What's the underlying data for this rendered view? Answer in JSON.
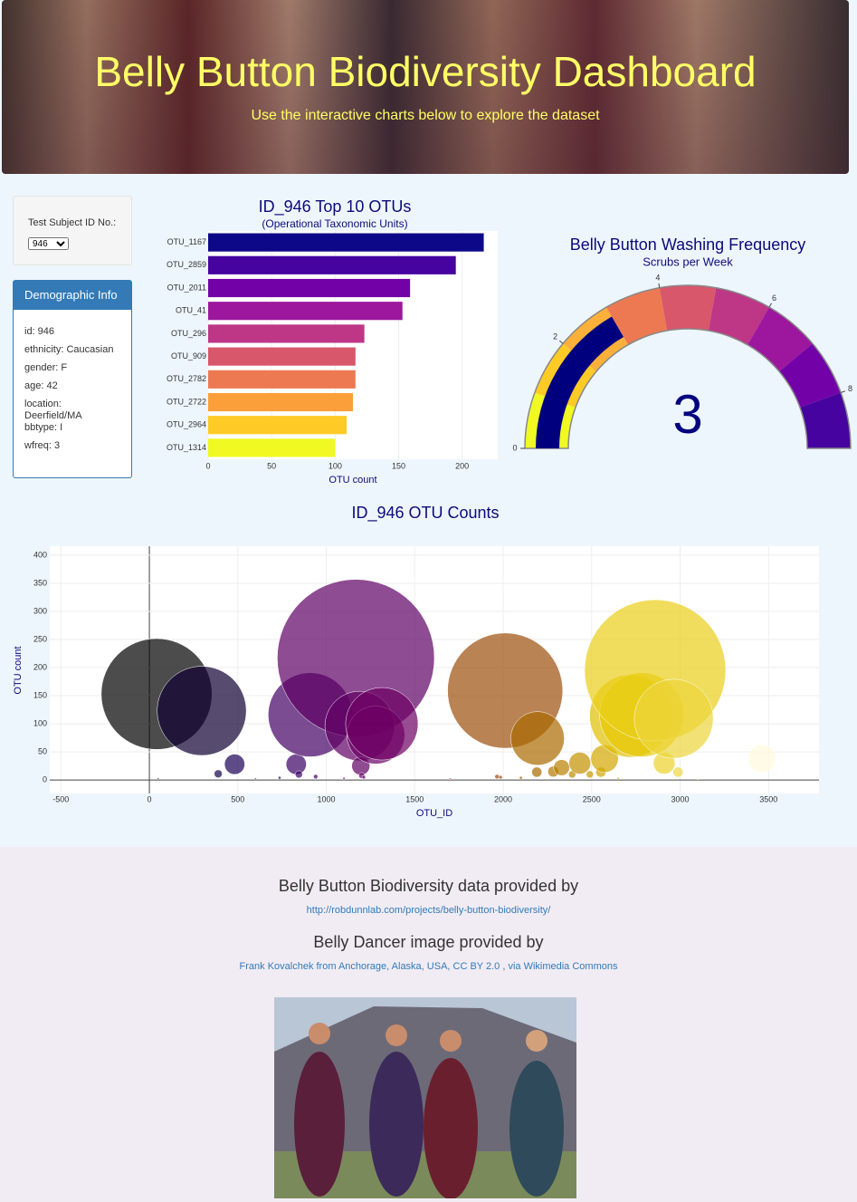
{
  "header": {
    "title": "Belly Button Biodiversity Dashboard",
    "subtitle": "Use the interactive charts below to explore the dataset"
  },
  "sidebar": {
    "select_label": "Test Subject ID No.:",
    "selected": "946",
    "panel_title": "Demographic Info",
    "info": [
      "id: 946",
      "ethnicity: Caucasian",
      "gender: F",
      "age: 42",
      "location: Deerfield/MA",
      "bbtype: I",
      "wfreq: 3"
    ]
  },
  "chart_data": [
    {
      "type": "hbar",
      "title": "ID_946 Top 10 OTUs",
      "subtitle": "(Operational Taxonomic Units)",
      "x_label": "OTU count",
      "categories": [
        "OTU_1167",
        "OTU_2859",
        "OTU_2011",
        "OTU_41",
        "OTU_296",
        "OTU_909",
        "OTU_2782",
        "OTU_2722",
        "OTU_2964",
        "OTU_1314"
      ],
      "values": [
        217,
        195,
        159,
        153,
        123,
        116,
        116,
        114,
        109,
        100
      ],
      "colors": [
        "#0d0887",
        "#46039f",
        "#7201a8",
        "#9c179e",
        "#bd3786",
        "#d8576b",
        "#ed7953",
        "#fb9f3a",
        "#fdca26",
        "#f0f921"
      ],
      "xlim": [
        0,
        228
      ],
      "xticks": [
        0,
        50,
        100,
        150,
        200
      ],
      "grid": true
    },
    {
      "type": "gauge",
      "title": "Belly Button Washing Frequency",
      "subtitle": "Scrubs per Week",
      "value": 3,
      "range": [
        0,
        9
      ],
      "ticks": [
        0,
        2,
        4,
        6,
        8
      ],
      "bar_color": "#00007f",
      "steps": [
        {
          "range": [
            0,
            1
          ],
          "color": "#f0f921"
        },
        {
          "range": [
            1,
            2
          ],
          "color": "#fdca26"
        },
        {
          "range": [
            2,
            3
          ],
          "color": "#fbb03a"
        },
        {
          "range": [
            3,
            4
          ],
          "color": "#ed7953"
        },
        {
          "range": [
            4,
            5
          ],
          "color": "#d8576b"
        },
        {
          "range": [
            5,
            6
          ],
          "color": "#bd3786"
        },
        {
          "range": [
            6,
            7
          ],
          "color": "#9c179e"
        },
        {
          "range": [
            7,
            8
          ],
          "color": "#7201a8"
        },
        {
          "range": [
            8,
            9
          ],
          "color": "#46039f"
        }
      ]
    },
    {
      "type": "bubble",
      "title": "ID_946 OTU Counts",
      "x_label": "OTU_ID",
      "y_label": "OTU count",
      "x": [
        41,
        296,
        389,
        482,
        736,
        830,
        845,
        909,
        940,
        1167,
        1189,
        1195,
        1200,
        1212,
        1280,
        1314,
        1965,
        1985,
        2011,
        2100,
        2190,
        2194,
        2283,
        2330,
        2390,
        2433,
        2490,
        2552,
        2573,
        2722,
        2782,
        2859,
        2910,
        2964,
        2988,
        3463,
        50,
        600,
        1100,
        1700,
        2650,
        3100
      ],
      "y": [
        153,
        123,
        11,
        28,
        4,
        28,
        10,
        116,
        6,
        217,
        96,
        25,
        8,
        5,
        80,
        100,
        6,
        5,
        159,
        4,
        14,
        74,
        15,
        22,
        10,
        30,
        10,
        14,
        38,
        114,
        116,
        195,
        30,
        109,
        14,
        38,
        2,
        2,
        3,
        2,
        3,
        2
      ],
      "colorscale": [
        [
          0,
          "#000000"
        ],
        [
          0.15,
          "#1e0064"
        ],
        [
          0.4,
          "#780064"
        ],
        [
          0.6,
          "#a05a00"
        ],
        [
          0.8,
          "#e6c800"
        ],
        [
          1,
          "#fffadc"
        ]
      ],
      "opacity": 0.7,
      "xlim": [
        -563,
        3785
      ],
      "ylim": [
        -24,
        416
      ],
      "xticks": [
        -500,
        0,
        500,
        1000,
        1500,
        2000,
        2500,
        3000,
        3500
      ],
      "yticks": [
        0,
        50,
        100,
        150,
        200,
        250,
        300,
        350,
        400
      ],
      "grid": true
    }
  ],
  "footer": {
    "data_credit": "Belly Button Biodiversity data provided by",
    "data_link": "http://robdunnlab.com/projects/belly-button-biodiversity/",
    "image_credit": "Belly Dancer image provided by",
    "image_link": "Frank Kovalchek from Anchorage, Alaska, USA, CC BY 2.0 , via Wikimedia Commons"
  }
}
